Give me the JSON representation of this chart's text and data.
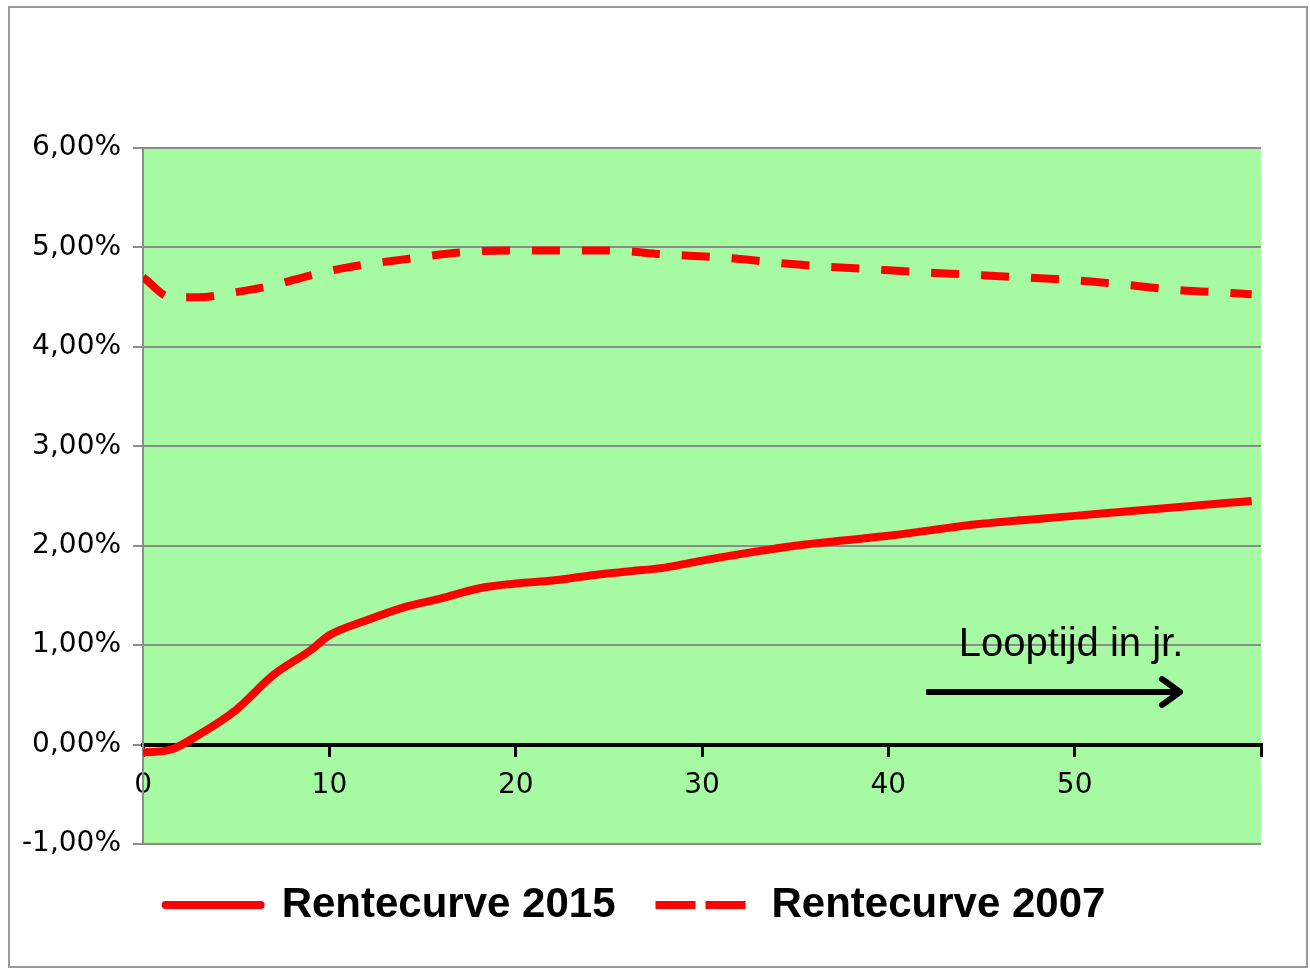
{
  "chart_data": {
    "type": "line",
    "xlabel": "Looptijd in jr.",
    "xlim": [
      0,
      60
    ],
    "xticks": [
      0,
      10,
      20,
      30,
      40,
      50,
      {
        "value": 60,
        "label": null
      }
    ],
    "ylim": [
      -1,
      6
    ],
    "yticks": [
      {
        "value": -1,
        "label": "-1,00%"
      },
      {
        "value": 0,
        "label": "0,00%"
      },
      {
        "value": 1,
        "label": "1,00%"
      },
      {
        "value": 2,
        "label": "2,00%"
      },
      {
        "value": 3,
        "label": "3,00%"
      },
      {
        "value": 4,
        "label": "4,00%"
      },
      {
        "value": 5,
        "label": "5,00%"
      },
      {
        "value": 6,
        "label": "6,00%"
      }
    ],
    "grid": "y",
    "legend": "bottom",
    "marker": "none",
    "series": [
      {
        "name": "Rentecurve 2015",
        "color": "#ff0000",
        "line_style": "solid",
        "x": [
          0,
          1.5,
          3,
          5,
          7,
          9,
          10,
          12,
          14,
          16,
          18,
          20,
          22,
          24,
          26,
          28,
          30,
          35,
          40,
          45,
          50,
          55,
          59.5
        ],
        "values": [
          -0.08,
          -0.05,
          0.1,
          0.35,
          0.7,
          0.95,
          1.1,
          1.25,
          1.38,
          1.47,
          1.57,
          1.62,
          1.65,
          1.7,
          1.74,
          1.78,
          1.85,
          2.0,
          2.1,
          2.22,
          2.3,
          2.38,
          2.45
        ]
      },
      {
        "name": "Rentecurve 2007",
        "color": "#ff0000",
        "line_style": "dashed",
        "x": [
          0,
          1.5,
          3,
          5,
          7,
          9,
          11,
          14,
          17,
          20,
          25,
          28,
          31,
          35,
          40,
          45,
          50,
          53,
          55,
          59.5
        ],
        "values": [
          4.7,
          4.5,
          4.5,
          4.55,
          4.62,
          4.72,
          4.8,
          4.88,
          4.95,
          4.97,
          4.97,
          4.93,
          4.9,
          4.83,
          4.77,
          4.72,
          4.67,
          4.62,
          4.58,
          4.53
        ]
      }
    ]
  }
}
